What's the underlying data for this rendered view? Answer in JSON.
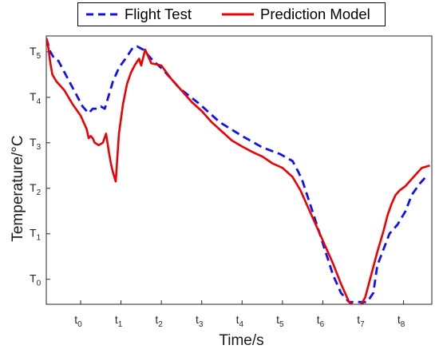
{
  "chart_data": {
    "type": "line",
    "xlabel": "Time/s",
    "ylabel": "Temperature/°C",
    "x_ticks": [
      {
        "sub": "0",
        "v": 0.85
      },
      {
        "sub": "1",
        "v": 1.85
      },
      {
        "sub": "2",
        "v": 2.85
      },
      {
        "sub": "3",
        "v": 3.85
      },
      {
        "sub": "4",
        "v": 4.85
      },
      {
        "sub": "5",
        "v": 5.85
      },
      {
        "sub": "6",
        "v": 6.85
      },
      {
        "sub": "7",
        "v": 7.85
      },
      {
        "sub": "8",
        "v": 8.85
      }
    ],
    "y_ticks": [
      {
        "sub": "0",
        "v": 0
      },
      {
        "sub": "1",
        "v": 1
      },
      {
        "sub": "2",
        "v": 2
      },
      {
        "sub": "3",
        "v": 3
      },
      {
        "sub": "4",
        "v": 4
      },
      {
        "sub": "5",
        "v": 5
      }
    ],
    "xlim": [
      0,
      9.55
    ],
    "ylim": [
      -0.55,
      5.35
    ],
    "grid": false,
    "legend_position": "top",
    "series": [
      {
        "name": "Flight Test",
        "color": "#1111ee",
        "style": "dashed",
        "x": [
          0,
          0.1,
          0.2,
          0.3,
          0.45,
          0.6,
          0.75,
          0.9,
          1.05,
          1.15,
          1.25,
          1.35,
          1.45,
          1.55,
          1.65,
          1.8,
          2.0,
          2.15,
          2.25,
          2.4,
          2.6,
          2.9,
          3.3,
          3.8,
          4.3,
          4.85,
          5.35,
          5.8,
          6.1,
          6.25,
          6.35,
          6.5,
          6.7,
          6.9,
          7.1,
          7.3,
          7.5,
          7.7,
          7.95,
          8.1,
          8.2,
          8.35,
          8.5,
          8.7,
          8.9,
          9.05,
          9.25,
          9.45
        ],
        "y": [
          5.3,
          5.0,
          4.85,
          4.8,
          4.55,
          4.3,
          4.05,
          3.8,
          3.65,
          3.75,
          3.75,
          3.8,
          3.75,
          4.05,
          4.35,
          4.65,
          4.9,
          5.1,
          5.12,
          5.05,
          4.85,
          4.6,
          4.2,
          3.85,
          3.45,
          3.15,
          2.9,
          2.75,
          2.6,
          2.35,
          2.15,
          1.75,
          1.2,
          0.65,
          0.1,
          -0.3,
          -0.5,
          -0.5,
          -0.5,
          -0.3,
          0.3,
          0.65,
          1.0,
          1.2,
          1.5,
          1.85,
          2.1,
          2.3
        ]
      },
      {
        "name": "Prediction Model",
        "color": "#ee0000",
        "style": "solid",
        "x": [
          0,
          0.05,
          0.1,
          0.15,
          0.25,
          0.45,
          0.65,
          0.85,
          1.0,
          1.05,
          1.1,
          1.15,
          1.2,
          1.3,
          1.4,
          1.48,
          1.55,
          1.6,
          1.65,
          1.72,
          1.8,
          1.9,
          2.0,
          2.1,
          2.2,
          2.3,
          2.35,
          2.45,
          2.6,
          2.85,
          3.1,
          3.35,
          3.6,
          3.85,
          4.1,
          4.35,
          4.6,
          4.85,
          5.1,
          5.35,
          5.6,
          5.85,
          6.1,
          6.3,
          6.5,
          6.7,
          6.9,
          7.1,
          7.3,
          7.5,
          7.65,
          7.8,
          7.9,
          8.05,
          8.2,
          8.35,
          8.45,
          8.55,
          8.65,
          8.75,
          8.9,
          9.1,
          9.3,
          9.5
        ],
        "y": [
          5.3,
          5.1,
          4.75,
          4.5,
          4.35,
          4.15,
          3.85,
          3.6,
          3.3,
          3.1,
          3.15,
          3.1,
          3.0,
          2.95,
          3.0,
          3.2,
          2.8,
          2.55,
          2.35,
          2.15,
          3.2,
          3.85,
          4.3,
          4.55,
          4.72,
          4.85,
          4.7,
          5.05,
          4.75,
          4.7,
          4.4,
          4.15,
          3.9,
          3.7,
          3.45,
          3.25,
          3.05,
          2.92,
          2.8,
          2.7,
          2.55,
          2.45,
          2.25,
          1.95,
          1.55,
          1.15,
          0.75,
          0.35,
          -0.1,
          -0.5,
          -0.6,
          -0.55,
          -0.4,
          0.1,
          0.6,
          1.05,
          1.4,
          1.65,
          1.85,
          1.95,
          2.05,
          2.25,
          2.45,
          2.5
        ]
      }
    ]
  }
}
